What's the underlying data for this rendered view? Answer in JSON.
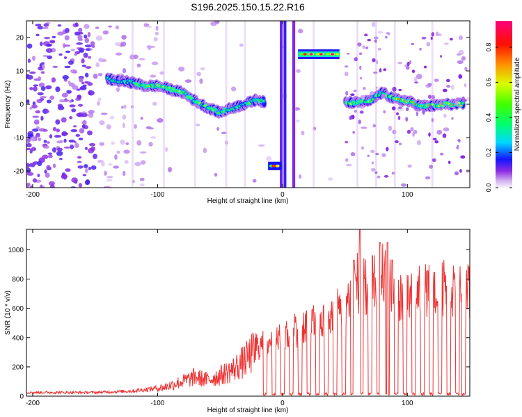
{
  "title": "S196.2025.150.15.22.R16",
  "chart_data": [
    {
      "type": "heatmap",
      "title": "S196.2025.150.15.22.R16",
      "xlabel": "Height of straight line (km)",
      "ylabel": "Frequency (Hz)",
      "xlim": [
        -205,
        150
      ],
      "ylim": [
        -25,
        25
      ],
      "x_ticks": [
        -200,
        -100,
        0,
        100
      ],
      "x_tick_labels": [
        "-200",
        "-100",
        "0",
        "100"
      ],
      "y_ticks": [
        -20,
        -10,
        0,
        10,
        20
      ],
      "y_tick_labels": [
        "-20",
        "-10",
        "0",
        "10",
        "20"
      ],
      "colorbar": {
        "label": "Normalized spectral amplitude",
        "range": [
          0,
          0.95
        ],
        "ticks": [
          0.0,
          0.2,
          0.4,
          0.6,
          0.8
        ],
        "tick_labels": [
          "0.0",
          "0.2",
          "0.4",
          "0.6",
          "0.8"
        ],
        "colormap": [
          "#f4e9fb",
          "#8b2be2",
          "#1010ff",
          "#00ffff",
          "#00ff00",
          "#ffff00",
          "#ff8000",
          "#ff0000",
          "#ff0080"
        ]
      },
      "frequency_track": [
        {
          "x": -140,
          "y": 7.5,
          "amp": 0.4
        },
        {
          "x": -130,
          "y": 7.0,
          "amp": 0.45
        },
        {
          "x": -120,
          "y": 6.5,
          "amp": 0.48
        },
        {
          "x": -110,
          "y": 5.5,
          "amp": 0.52
        },
        {
          "x": -100,
          "y": 5.5,
          "amp": 0.62
        },
        {
          "x": -90,
          "y": 4.5,
          "amp": 0.65
        },
        {
          "x": -80,
          "y": 3.5,
          "amp": 0.6
        },
        {
          "x": -70,
          "y": 1.0,
          "amp": 0.5
        },
        {
          "x": -60,
          "y": -1.0,
          "amp": 0.55
        },
        {
          "x": -50,
          "y": -2.5,
          "amp": 0.58
        },
        {
          "x": -40,
          "y": -1.0,
          "amp": 0.5
        },
        {
          "x": -30,
          "y": 0.0,
          "amp": 0.5
        },
        {
          "x": -20,
          "y": 1.5,
          "amp": 0.5
        },
        {
          "x": -14,
          "y": 0.5,
          "amp": 0.45
        },
        {
          "x": -7,
          "y": -18.5,
          "amp": 0.75
        },
        {
          "x": 20,
          "y": 15.0,
          "amp": 0.95
        },
        {
          "x": 30,
          "y": 15.0,
          "amp": 0.95
        },
        {
          "x": 40,
          "y": 15.0,
          "amp": 0.92
        },
        {
          "x": 50,
          "y": 0.5,
          "amp": 0.55
        },
        {
          "x": 60,
          "y": 0.5,
          "amp": 0.6
        },
        {
          "x": 70,
          "y": 1.0,
          "amp": 0.6
        },
        {
          "x": 80,
          "y": 3.5,
          "amp": 0.45
        },
        {
          "x": 90,
          "y": 1.5,
          "amp": 0.65
        },
        {
          "x": 100,
          "y": 1.0,
          "amp": 0.7
        },
        {
          "x": 110,
          "y": -0.5,
          "amp": 0.72
        },
        {
          "x": 120,
          "y": -0.5,
          "amp": 0.7
        },
        {
          "x": 130,
          "y": 0.0,
          "amp": 0.7
        },
        {
          "x": 145,
          "y": 0.0,
          "amp": 0.68
        }
      ]
    },
    {
      "type": "line",
      "xlabel": "Height of straight line (km)",
      "ylabel": "SNR (10 * v/v)",
      "xlim": [
        -205,
        150
      ],
      "ylim": [
        0,
        1140
      ],
      "x_ticks": [
        -200,
        -100,
        0,
        100
      ],
      "x_tick_labels": [
        "-200",
        "-100",
        "0",
        "100"
      ],
      "y_ticks": [
        0,
        200,
        400,
        600,
        800,
        1000
      ],
      "y_tick_labels": [
        "0",
        "200",
        "400",
        "600",
        "800",
        "1000"
      ],
      "color": "#ee3333",
      "envelope": [
        {
          "x": -205,
          "y": 25
        },
        {
          "x": -150,
          "y": 25
        },
        {
          "x": -120,
          "y": 35
        },
        {
          "x": -95,
          "y": 60
        },
        {
          "x": -80,
          "y": 100
        },
        {
          "x": -70,
          "y": 130
        },
        {
          "x": -60,
          "y": 110
        },
        {
          "x": -50,
          "y": 140
        },
        {
          "x": -40,
          "y": 180
        },
        {
          "x": -30,
          "y": 240
        },
        {
          "x": -20,
          "y": 330
        },
        {
          "x": -10,
          "y": 380
        },
        {
          "x": 0,
          "y": 390
        },
        {
          "x": 10,
          "y": 450
        },
        {
          "x": 20,
          "y": 500
        },
        {
          "x": 30,
          "y": 480
        },
        {
          "x": 40,
          "y": 560
        },
        {
          "x": 50,
          "y": 620
        },
        {
          "x": 60,
          "y": 780
        },
        {
          "x": 70,
          "y": 720
        },
        {
          "x": 80,
          "y": 820
        },
        {
          "x": 90,
          "y": 720
        },
        {
          "x": 100,
          "y": 650
        },
        {
          "x": 110,
          "y": 700
        },
        {
          "x": 120,
          "y": 720
        },
        {
          "x": 130,
          "y": 730
        },
        {
          "x": 140,
          "y": 720
        },
        {
          "x": 150,
          "y": 710
        }
      ],
      "peaks": [
        {
          "x": 62,
          "y": 1140
        },
        {
          "x": 78,
          "y": 1050
        },
        {
          "x": 84,
          "y": 1050
        },
        {
          "x": 57,
          "y": 930
        },
        {
          "x": 72,
          "y": 960
        },
        {
          "x": 88,
          "y": 930
        }
      ],
      "dropouts_x": [
        -14,
        -7,
        0,
        7,
        14,
        21,
        28,
        35,
        42,
        49,
        56,
        63,
        70,
        77,
        84,
        91,
        98,
        105,
        112,
        119,
        126,
        133,
        140,
        145
      ]
    }
  ]
}
